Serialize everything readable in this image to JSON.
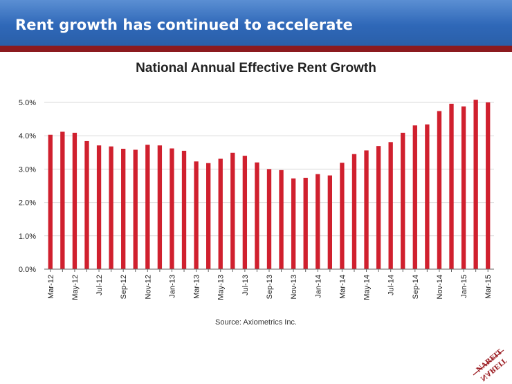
{
  "slide": {
    "title": "Rent growth has continued to accelerate",
    "source": "Source: Axiometrics Inc.",
    "logo_text": "NAREIT",
    "colors": {
      "banner": "#2f68b8",
      "stripe": "#8b1a1f",
      "bar": "#d0202e"
    }
  },
  "chart_data": {
    "type": "bar",
    "title": "National Annual Effective Rent Growth",
    "xlabel": "",
    "ylabel": "",
    "ylim": [
      0,
      5
    ],
    "yticks": [
      "0.0%",
      "1.0%",
      "2.0%",
      "3.0%",
      "4.0%",
      "5.0%"
    ],
    "grid": true,
    "categories": [
      "Mar-12",
      "Apr-12",
      "May-12",
      "Jun-12",
      "Jul-12",
      "Aug-12",
      "Sep-12",
      "Oct-12",
      "Nov-12",
      "Dec-12",
      "Jan-13",
      "Feb-13",
      "Mar-13",
      "Apr-13",
      "May-13",
      "Jun-13",
      "Jul-13",
      "Aug-13",
      "Sep-13",
      "Oct-13",
      "Nov-13",
      "Dec-13",
      "Jan-14",
      "Feb-14",
      "Mar-14",
      "Apr-14",
      "May-14",
      "Jun-14",
      "Jul-14",
      "Aug-14",
      "Sep-14",
      "Oct-14",
      "Nov-14",
      "Dec-14",
      "Jan-15",
      "Feb-15",
      "Mar-15"
    ],
    "tick_labels": [
      "Mar-12",
      "",
      "May-12",
      "",
      "Jul-12",
      "",
      "Sep-12",
      "",
      "Nov-12",
      "",
      "Jan-13",
      "",
      "Mar-13",
      "",
      "May-13",
      "",
      "Jul-13",
      "",
      "Sep-13",
      "",
      "Nov-13",
      "",
      "Jan-14",
      "",
      "Mar-14",
      "",
      "May-14",
      "",
      "Jul-14",
      "",
      "Sep-14",
      "",
      "Nov-14",
      "",
      "Jan-15",
      "",
      "Mar-15"
    ],
    "values": [
      4.03,
      4.12,
      4.09,
      3.84,
      3.71,
      3.68,
      3.61,
      3.58,
      3.73,
      3.71,
      3.62,
      3.55,
      3.23,
      3.18,
      3.31,
      3.49,
      3.4,
      3.2,
      3.0,
      2.97,
      2.72,
      2.74,
      2.85,
      2.81,
      3.19,
      3.45,
      3.56,
      3.69,
      3.81,
      4.09,
      4.31,
      4.34,
      4.74,
      4.96,
      4.88,
      5.08,
      5.0
    ]
  }
}
